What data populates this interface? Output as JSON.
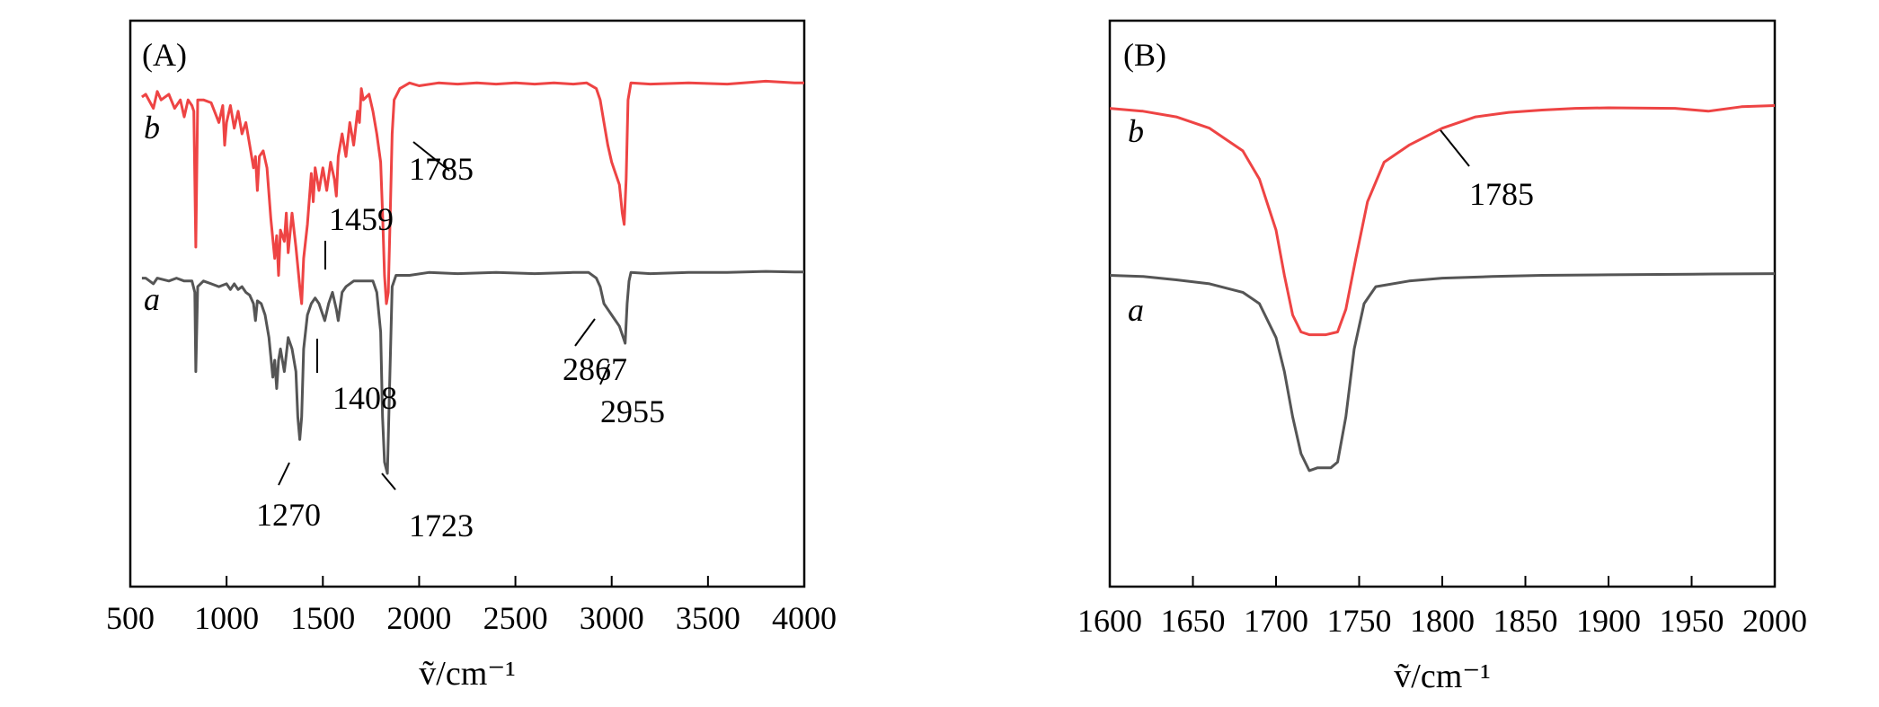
{
  "chart_data": [
    {
      "panel": "(A)",
      "type": "line",
      "xlabel": "ṽ/cm⁻¹",
      "xlim": [
        500,
        4000
      ],
      "xticks": [
        "500",
        "1000",
        "1500",
        "2000",
        "2500",
        "3000",
        "3500",
        "4000"
      ],
      "ylabel": "",
      "offset_baselines": {
        "b": 0.88,
        "a": 0.54
      },
      "series": [
        {
          "name": "b",
          "color": "#ee4444",
          "points": [
            [
              560,
              0.865
            ],
            [
              580,
              0.87
            ],
            [
              620,
              0.845
            ],
            [
              640,
              0.875
            ],
            [
              660,
              0.86
            ],
            [
              700,
              0.87
            ],
            [
              730,
              0.845
            ],
            [
              760,
              0.86
            ],
            [
              780,
              0.83
            ],
            [
              800,
              0.86
            ],
            [
              820,
              0.85
            ],
            [
              830,
              0.84
            ],
            [
              840,
              0.6
            ],
            [
              850,
              0.86
            ],
            [
              880,
              0.86
            ],
            [
              920,
              0.855
            ],
            [
              960,
              0.82
            ],
            [
              980,
              0.85
            ],
            [
              990,
              0.78
            ],
            [
              1000,
              0.82
            ],
            [
              1020,
              0.85
            ],
            [
              1040,
              0.81
            ],
            [
              1060,
              0.84
            ],
            [
              1080,
              0.8
            ],
            [
              1100,
              0.82
            ],
            [
              1120,
              0.78
            ],
            [
              1140,
              0.74
            ],
            [
              1150,
              0.76
            ],
            [
              1160,
              0.7
            ],
            [
              1170,
              0.76
            ],
            [
              1190,
              0.77
            ],
            [
              1210,
              0.74
            ],
            [
              1230,
              0.65
            ],
            [
              1250,
              0.58
            ],
            [
              1260,
              0.62
            ],
            [
              1270,
              0.55
            ],
            [
              1280,
              0.63
            ],
            [
              1300,
              0.61
            ],
            [
              1310,
              0.66
            ],
            [
              1320,
              0.59
            ],
            [
              1340,
              0.66
            ],
            [
              1360,
              0.6
            ],
            [
              1380,
              0.53
            ],
            [
              1390,
              0.5
            ],
            [
              1400,
              0.58
            ],
            [
              1420,
              0.64
            ],
            [
              1440,
              0.73
            ],
            [
              1450,
              0.68
            ],
            [
              1460,
              0.74
            ],
            [
              1480,
              0.7
            ],
            [
              1500,
              0.74
            ],
            [
              1520,
              0.7
            ],
            [
              1540,
              0.75
            ],
            [
              1560,
              0.72
            ],
            [
              1570,
              0.69
            ],
            [
              1580,
              0.76
            ],
            [
              1600,
              0.8
            ],
            [
              1620,
              0.76
            ],
            [
              1640,
              0.82
            ],
            [
              1660,
              0.78
            ],
            [
              1680,
              0.84
            ],
            [
              1690,
              0.82
            ],
            [
              1700,
              0.88
            ],
            [
              1710,
              0.86
            ],
            [
              1740,
              0.87
            ],
            [
              1760,
              0.84
            ],
            [
              1780,
              0.8
            ],
            [
              1800,
              0.75
            ],
            [
              1810,
              0.66
            ],
            [
              1820,
              0.55
            ],
            [
              1830,
              0.5
            ],
            [
              1840,
              0.52
            ],
            [
              1850,
              0.66
            ],
            [
              1860,
              0.8
            ],
            [
              1870,
              0.86
            ],
            [
              1900,
              0.88
            ],
            [
              1950,
              0.89
            ],
            [
              2000,
              0.885
            ],
            [
              2100,
              0.89
            ],
            [
              2200,
              0.888
            ],
            [
              2300,
              0.89
            ],
            [
              2400,
              0.888
            ],
            [
              2500,
              0.89
            ],
            [
              2600,
              0.888
            ],
            [
              2700,
              0.89
            ],
            [
              2800,
              0.888
            ],
            [
              2870,
              0.89
            ],
            [
              2920,
              0.88
            ],
            [
              2940,
              0.86
            ],
            [
              2960,
              0.82
            ],
            [
              2980,
              0.78
            ],
            [
              3000,
              0.75
            ],
            [
              3020,
              0.73
            ],
            [
              3040,
              0.71
            ],
            [
              3055,
              0.66
            ],
            [
              3065,
              0.64
            ],
            [
              3075,
              0.72
            ],
            [
              3085,
              0.86
            ],
            [
              3100,
              0.89
            ],
            [
              3200,
              0.888
            ],
            [
              3400,
              0.89
            ],
            [
              3600,
              0.888
            ],
            [
              3800,
              0.893
            ],
            [
              3950,
              0.89
            ],
            [
              4000,
              0.89
            ]
          ]
        },
        {
          "name": "a",
          "color": "#555555",
          "points": [
            [
              560,
              0.545
            ],
            [
              580,
              0.545
            ],
            [
              620,
              0.535
            ],
            [
              640,
              0.545
            ],
            [
              700,
              0.54
            ],
            [
              740,
              0.545
            ],
            [
              780,
              0.54
            ],
            [
              820,
              0.54
            ],
            [
              835,
              0.52
            ],
            [
              840,
              0.38
            ],
            [
              850,
              0.53
            ],
            [
              880,
              0.54
            ],
            [
              920,
              0.535
            ],
            [
              960,
              0.53
            ],
            [
              1000,
              0.535
            ],
            [
              1020,
              0.525
            ],
            [
              1040,
              0.535
            ],
            [
              1060,
              0.525
            ],
            [
              1080,
              0.53
            ],
            [
              1100,
              0.52
            ],
            [
              1120,
              0.515
            ],
            [
              1140,
              0.5
            ],
            [
              1150,
              0.47
            ],
            [
              1160,
              0.505
            ],
            [
              1180,
              0.5
            ],
            [
              1200,
              0.48
            ],
            [
              1220,
              0.44
            ],
            [
              1240,
              0.37
            ],
            [
              1250,
              0.4
            ],
            [
              1260,
              0.35
            ],
            [
              1270,
              0.4
            ],
            [
              1280,
              0.42
            ],
            [
              1300,
              0.38
            ],
            [
              1310,
              0.41
            ],
            [
              1320,
              0.44
            ],
            [
              1340,
              0.42
            ],
            [
              1360,
              0.38
            ],
            [
              1370,
              0.3
            ],
            [
              1380,
              0.26
            ],
            [
              1390,
              0.3
            ],
            [
              1400,
              0.42
            ],
            [
              1420,
              0.48
            ],
            [
              1440,
              0.5
            ],
            [
              1460,
              0.51
            ],
            [
              1480,
              0.5
            ],
            [
              1500,
              0.48
            ],
            [
              1510,
              0.47
            ],
            [
              1530,
              0.5
            ],
            [
              1550,
              0.52
            ],
            [
              1570,
              0.49
            ],
            [
              1580,
              0.47
            ],
            [
              1600,
              0.52
            ],
            [
              1620,
              0.53
            ],
            [
              1660,
              0.54
            ],
            [
              1720,
              0.54
            ],
            [
              1760,
              0.54
            ],
            [
              1780,
              0.52
            ],
            [
              1800,
              0.45
            ],
            [
              1810,
              0.3
            ],
            [
              1820,
              0.22
            ],
            [
              1835,
              0.2
            ],
            [
              1850,
              0.4
            ],
            [
              1860,
              0.53
            ],
            [
              1880,
              0.55
            ],
            [
              1950,
              0.55
            ],
            [
              2050,
              0.555
            ],
            [
              2200,
              0.553
            ],
            [
              2400,
              0.555
            ],
            [
              2600,
              0.553
            ],
            [
              2800,
              0.555
            ],
            [
              2880,
              0.555
            ],
            [
              2920,
              0.545
            ],
            [
              2940,
              0.53
            ],
            [
              2960,
              0.5
            ],
            [
              2980,
              0.49
            ],
            [
              3000,
              0.48
            ],
            [
              3020,
              0.47
            ],
            [
              3040,
              0.46
            ],
            [
              3060,
              0.44
            ],
            [
              3070,
              0.43
            ],
            [
              3080,
              0.5
            ],
            [
              3090,
              0.54
            ],
            [
              3100,
              0.555
            ],
            [
              3200,
              0.553
            ],
            [
              3400,
              0.555
            ],
            [
              3600,
              0.555
            ],
            [
              3800,
              0.557
            ],
            [
              3950,
              0.556
            ],
            [
              4000,
              0.556
            ]
          ]
        }
      ],
      "annotations": [
        {
          "text": "1785",
          "series": "b",
          "x": 1785
        },
        {
          "text": "1459",
          "series": "a",
          "x": 1459
        },
        {
          "text": "1408",
          "series": "a",
          "x": 1408
        },
        {
          "text": "1270",
          "series": "a",
          "x": 1270
        },
        {
          "text": "1723",
          "series": "a",
          "x": 1723
        },
        {
          "text": "2867",
          "series": "a",
          "x": 2867
        },
        {
          "text": "2955",
          "series": "a",
          "x": 2955
        }
      ]
    },
    {
      "panel": "(B)",
      "type": "line",
      "xlabel": "ṽ/cm⁻¹",
      "xlim": [
        1600,
        2000
      ],
      "xticks": [
        "1600",
        "1650",
        "1700",
        "1750",
        "1800",
        "1850",
        "1900",
        "1950",
        "2000"
      ],
      "ylabel": "",
      "offset_baselines": {
        "b": 0.85,
        "a": 0.55
      },
      "series": [
        {
          "name": "b",
          "color": "#ee4444",
          "points": [
            [
              1600,
              0.845
            ],
            [
              1620,
              0.84
            ],
            [
              1640,
              0.83
            ],
            [
              1660,
              0.81
            ],
            [
              1680,
              0.77
            ],
            [
              1690,
              0.72
            ],
            [
              1700,
              0.63
            ],
            [
              1705,
              0.55
            ],
            [
              1710,
              0.48
            ],
            [
              1715,
              0.45
            ],
            [
              1720,
              0.445
            ],
            [
              1730,
              0.445
            ],
            [
              1737,
              0.45
            ],
            [
              1742,
              0.49
            ],
            [
              1748,
              0.58
            ],
            [
              1755,
              0.68
            ],
            [
              1765,
              0.75
            ],
            [
              1780,
              0.78
            ],
            [
              1800,
              0.81
            ],
            [
              1820,
              0.83
            ],
            [
              1840,
              0.838
            ],
            [
              1860,
              0.842
            ],
            [
              1880,
              0.845
            ],
            [
              1900,
              0.846
            ],
            [
              1940,
              0.845
            ],
            [
              1960,
              0.84
            ],
            [
              1980,
              0.848
            ],
            [
              2000,
              0.85
            ]
          ]
        },
        {
          "name": "a",
          "color": "#555555",
          "points": [
            [
              1600,
              0.55
            ],
            [
              1620,
              0.548
            ],
            [
              1640,
              0.542
            ],
            [
              1660,
              0.535
            ],
            [
              1680,
              0.52
            ],
            [
              1690,
              0.5
            ],
            [
              1700,
              0.44
            ],
            [
              1705,
              0.38
            ],
            [
              1710,
              0.3
            ],
            [
              1715,
              0.235
            ],
            [
              1720,
              0.205
            ],
            [
              1725,
              0.21
            ],
            [
              1733,
              0.21
            ],
            [
              1737,
              0.22
            ],
            [
              1742,
              0.3
            ],
            [
              1747,
              0.42
            ],
            [
              1753,
              0.5
            ],
            [
              1760,
              0.53
            ],
            [
              1780,
              0.54
            ],
            [
              1800,
              0.545
            ],
            [
              1830,
              0.548
            ],
            [
              1860,
              0.55
            ],
            [
              1900,
              0.551
            ],
            [
              1950,
              0.552
            ],
            [
              2000,
              0.553
            ]
          ]
        }
      ],
      "annotations": [
        {
          "text": "1785",
          "series": "b",
          "x": 1785
        }
      ]
    }
  ]
}
